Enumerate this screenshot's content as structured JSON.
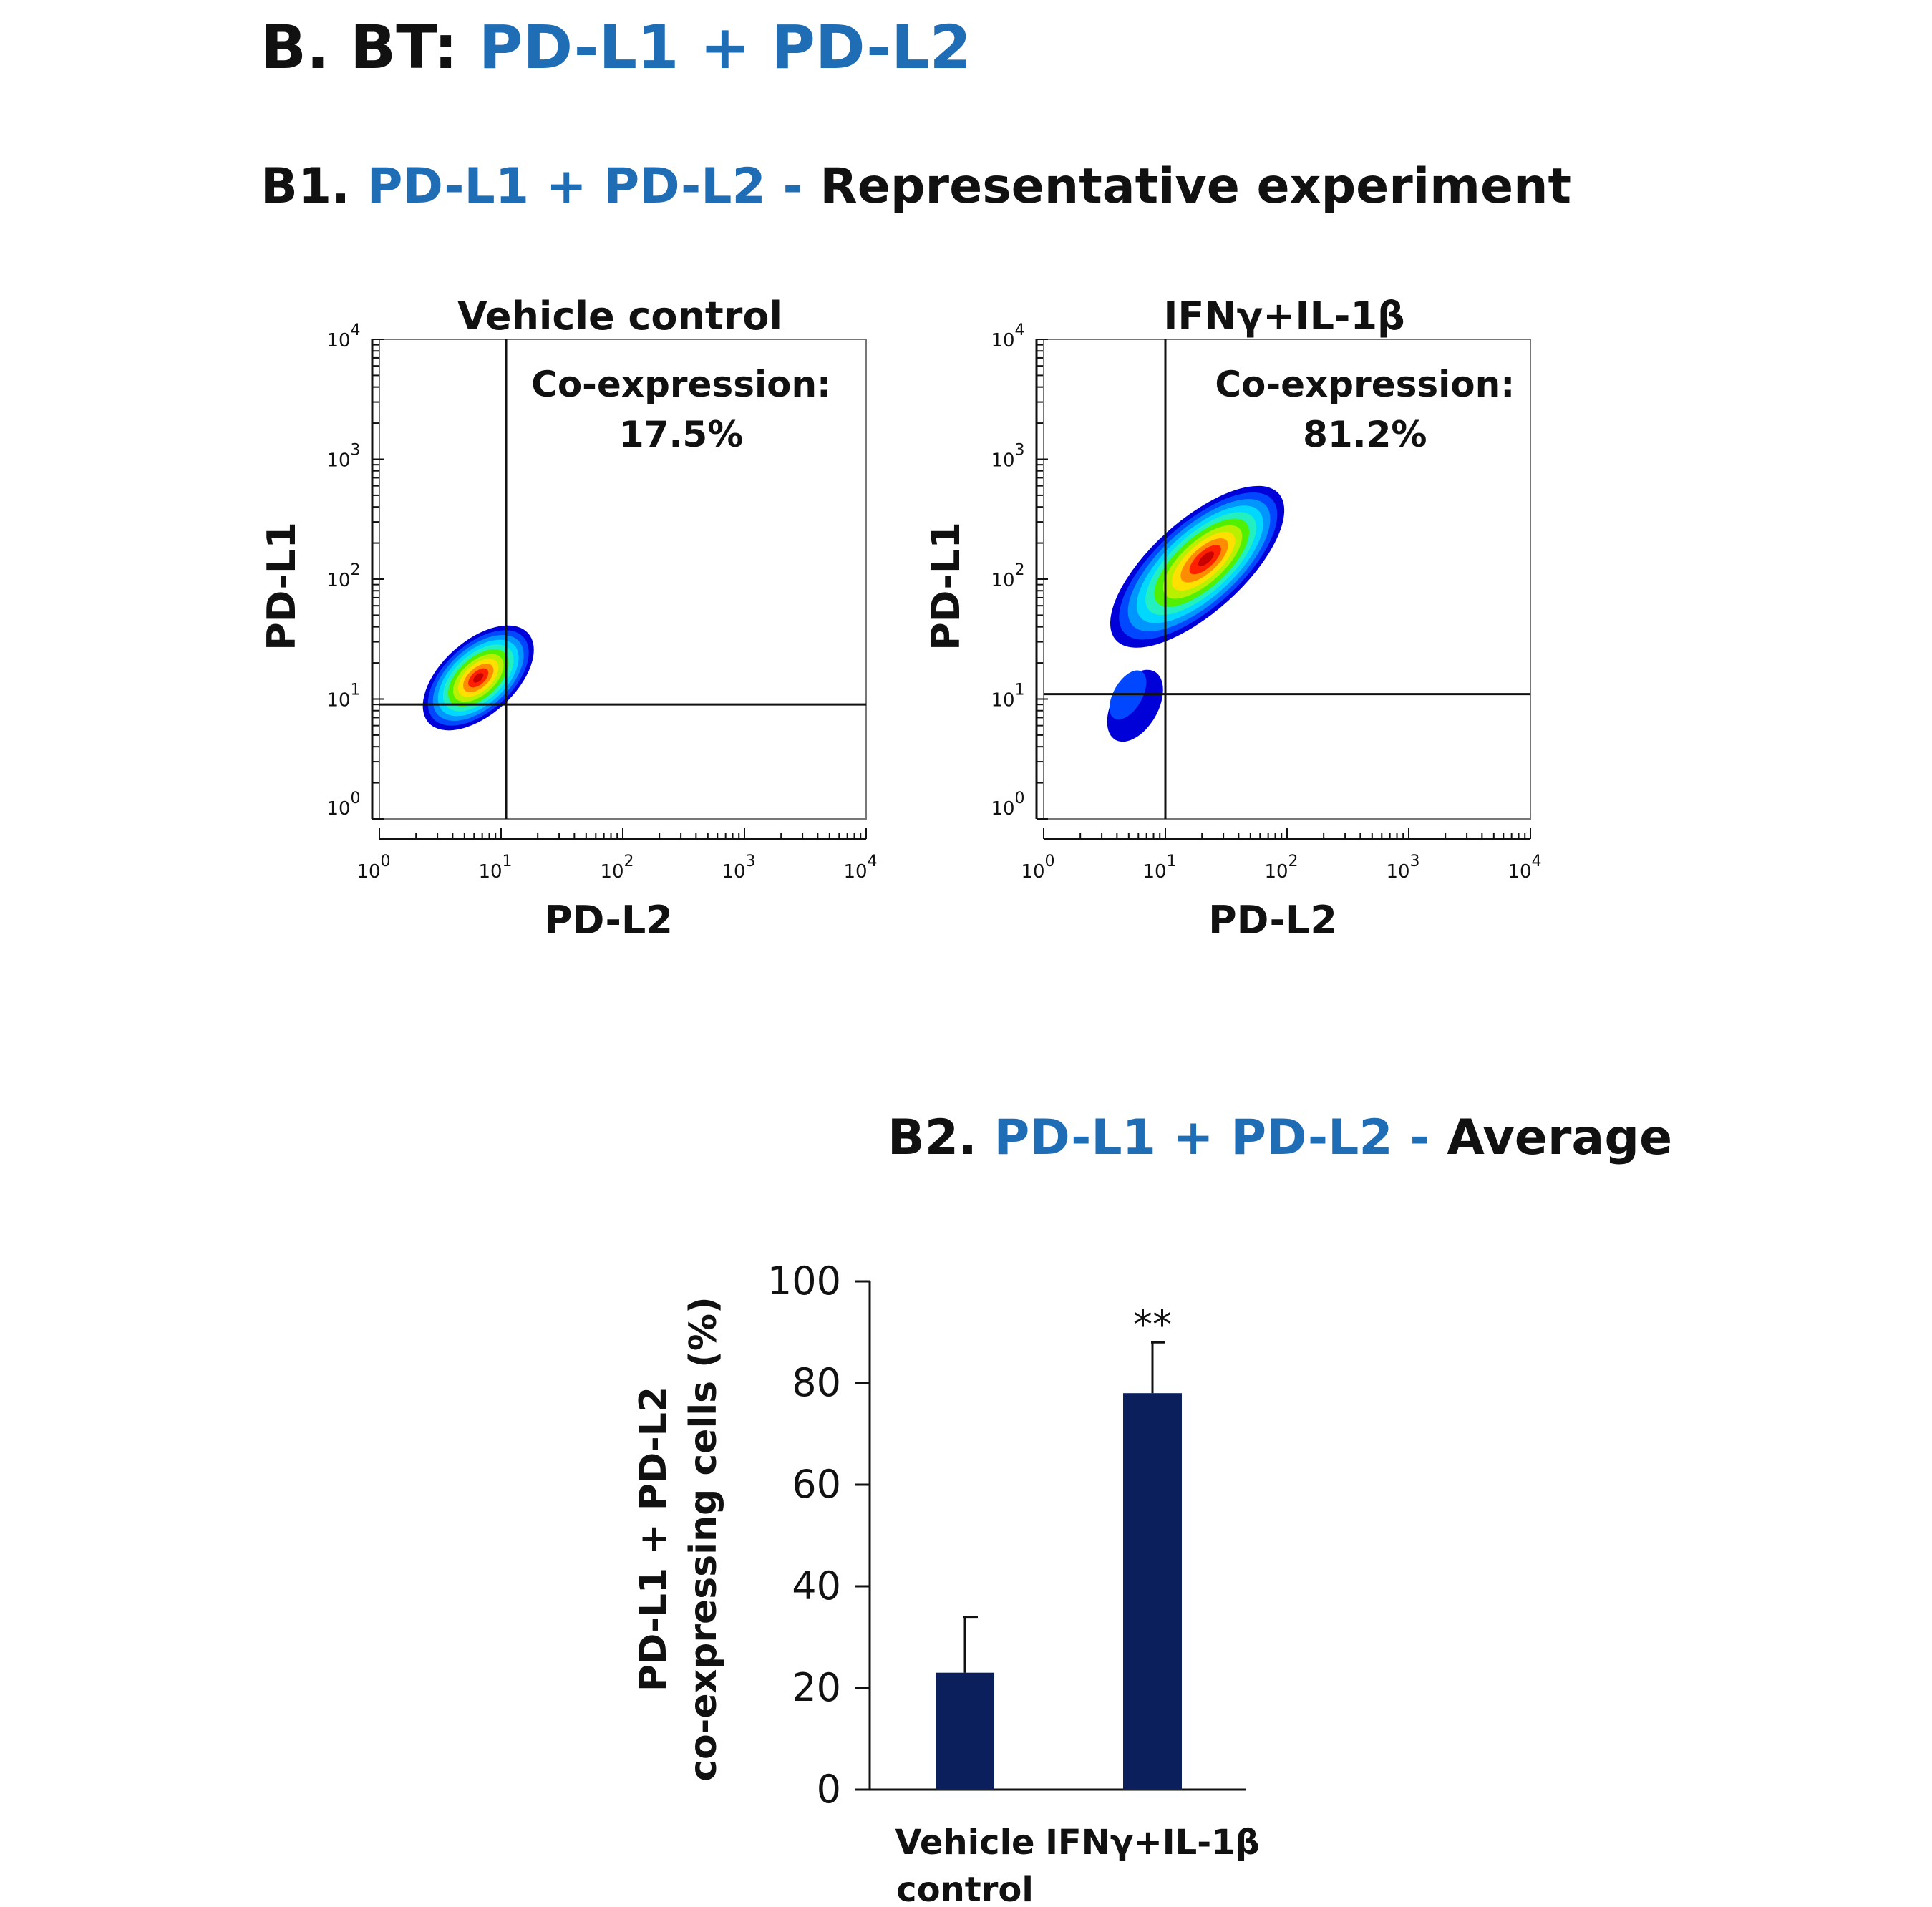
{
  "colors": {
    "accent": "#1f6db5",
    "text": "#111111",
    "bar": "#0b1f5c"
  },
  "header": {
    "prefix": "B. BT: ",
    "title": "PD-L1 + PD-L2"
  },
  "section1": {
    "prefix": "B1. ",
    "marker": "PD-L1 + PD-L2 -",
    "title": " Representative experiment"
  },
  "section2": {
    "prefix": "B2. ",
    "marker": "PD-L1 + PD-L2 -",
    "title": " Average"
  },
  "chart_data": [
    {
      "type": "scatter",
      "subtype": "flow-cytometry-density",
      "title": "Vehicle control",
      "xlabel": "PD-L2",
      "ylabel": "PD-L1",
      "xscale": "log",
      "yscale": "log",
      "xlim": [
        1,
        10000
      ],
      "ylim": [
        1,
        10000
      ],
      "tick_base": "10",
      "tick_exponents": [
        "0",
        "1",
        "2",
        "3",
        "4"
      ],
      "gate": {
        "x": 11,
        "y": 9
      },
      "annotation": {
        "label": "Co-expression:",
        "value": "17.5%"
      },
      "population": {
        "cx": 6.5,
        "cy": 15,
        "spread_decades": 0.55,
        "peak_color": "red"
      }
    },
    {
      "type": "scatter",
      "subtype": "flow-cytometry-density",
      "title": "IFNγ+IL-1β",
      "xlabel": "PD-L2",
      "ylabel": "PD-L1",
      "xscale": "log",
      "yscale": "log",
      "xlim": [
        1,
        10000
      ],
      "ylim": [
        1,
        10000
      ],
      "tick_base": "10",
      "tick_exponents": [
        "0",
        "1",
        "2",
        "3",
        "4"
      ],
      "gate": {
        "x": 10,
        "y": 11
      },
      "annotation": {
        "label": "Co-expression:",
        "value": "81.2%"
      },
      "population": {
        "cx": 22,
        "cy": 150,
        "spread_decades": 0.9,
        "peak_color": "red"
      }
    },
    {
      "type": "bar",
      "title": "",
      "categories": [
        "Vehicle control",
        "IFNγ+IL-1β"
      ],
      "category_lines": [
        [
          "Vehicle",
          "control"
        ],
        [
          "IFNγ+IL-1β"
        ]
      ],
      "series": [
        {
          "name": "PD-L1 + PD-L2 co-expressing cells (%)",
          "values": [
            23,
            78
          ]
        }
      ],
      "errors": [
        11,
        10
      ],
      "significance": [
        "",
        "**"
      ],
      "ylabel_lines": [
        "PD-L1 + PD-L2",
        "co-expressing cells (%)"
      ],
      "ylim": [
        0,
        100
      ],
      "yticks": [
        0,
        20,
        40,
        60,
        80,
        100
      ],
      "grid": false
    }
  ]
}
